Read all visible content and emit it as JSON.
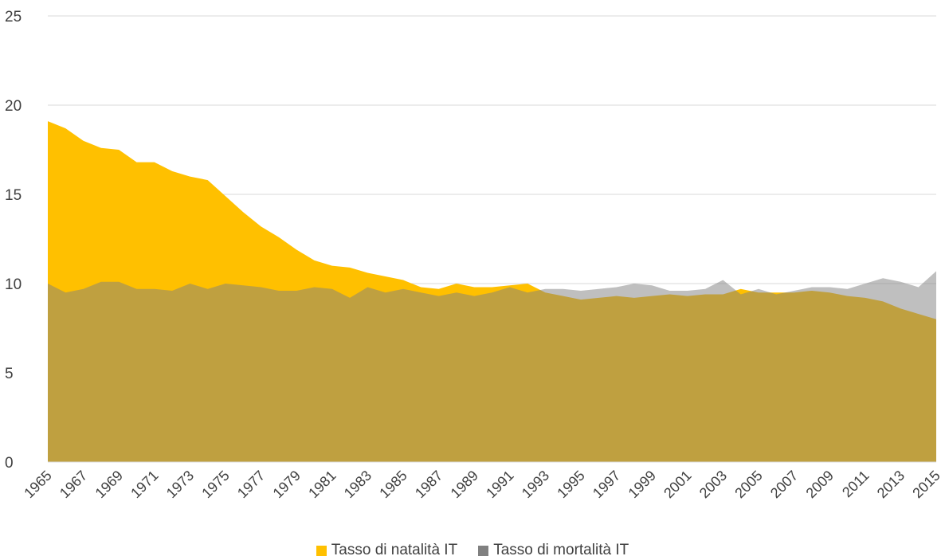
{
  "chart_data": {
    "type": "area",
    "title": "",
    "xlabel": "",
    "ylabel": "",
    "ylim": [
      0,
      25
    ],
    "yticks": [
      0,
      5,
      10,
      15,
      20,
      25
    ],
    "grid": true,
    "legend_position": "bottom",
    "x": [
      1965,
      1966,
      1967,
      1968,
      1969,
      1970,
      1971,
      1972,
      1973,
      1974,
      1975,
      1976,
      1977,
      1978,
      1979,
      1980,
      1981,
      1982,
      1983,
      1984,
      1985,
      1986,
      1987,
      1988,
      1989,
      1990,
      1991,
      1992,
      1993,
      1994,
      1995,
      1996,
      1997,
      1998,
      1999,
      2000,
      2001,
      2002,
      2003,
      2004,
      2005,
      2006,
      2007,
      2008,
      2009,
      2010,
      2011,
      2012,
      2013,
      2014,
      2015
    ],
    "xtick_labels": [
      "1965",
      "1967",
      "1969",
      "1971",
      "1973",
      "1975",
      "1977",
      "1979",
      "1981",
      "1983",
      "1985",
      "1987",
      "1989",
      "1991",
      "1993",
      "1995",
      "1997",
      "1999",
      "2001",
      "2003",
      "2005",
      "2007",
      "2009",
      "2011",
      "2013",
      "2015"
    ],
    "series": [
      {
        "name": "Tasso di natalità IT",
        "color": "#FFC000",
        "values": [
          19.1,
          18.7,
          18.0,
          17.6,
          17.5,
          16.8,
          16.8,
          16.3,
          16.0,
          15.8,
          14.9,
          14.0,
          13.2,
          12.6,
          11.9,
          11.3,
          11.0,
          10.9,
          10.6,
          10.4,
          10.2,
          9.8,
          9.7,
          10.0,
          9.8,
          9.8,
          9.9,
          10.0,
          9.5,
          9.3,
          9.1,
          9.2,
          9.3,
          9.2,
          9.3,
          9.4,
          9.3,
          9.4,
          9.4,
          9.7,
          9.5,
          9.5,
          9.5,
          9.6,
          9.5,
          9.3,
          9.2,
          9.0,
          8.6,
          8.3,
          8.0
        ]
      },
      {
        "name": "Tasso di mortalità IT",
        "color": "#808080",
        "values": [
          10.0,
          9.5,
          9.7,
          10.1,
          10.1,
          9.7,
          9.7,
          9.6,
          10.0,
          9.7,
          10.0,
          9.9,
          9.8,
          9.6,
          9.6,
          9.8,
          9.7,
          9.2,
          9.8,
          9.5,
          9.7,
          9.5,
          9.3,
          9.5,
          9.3,
          9.5,
          9.8,
          9.5,
          9.7,
          9.7,
          9.6,
          9.7,
          9.8,
          10.0,
          9.9,
          9.6,
          9.6,
          9.7,
          10.2,
          9.4,
          9.7,
          9.4,
          9.6,
          9.8,
          9.8,
          9.7,
          10.0,
          10.3,
          10.1,
          9.8,
          10.7
        ]
      }
    ]
  }
}
